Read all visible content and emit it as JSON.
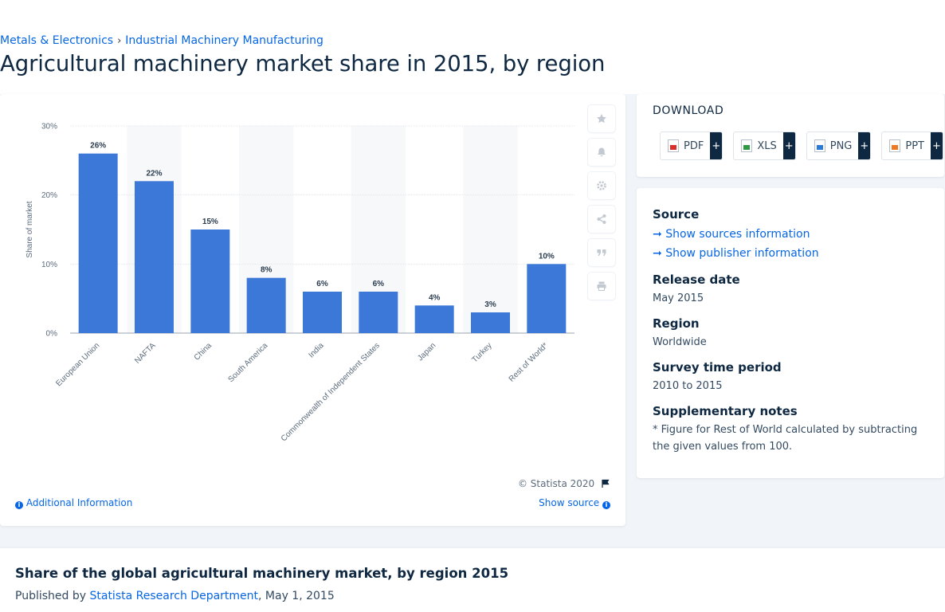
{
  "breadcrumb": {
    "first": "Metals & Electronics",
    "separator": "›",
    "second": "Industrial Machinery Manufacturing"
  },
  "page_title": "Agricultural machinery market share in 2015, by region",
  "chart_data": {
    "type": "bar",
    "categories": [
      "European Union",
      "NAFTA",
      "China",
      "South America",
      "India",
      "Commonwealth of Independent States",
      "Japan",
      "Turkey",
      "Rest of World*"
    ],
    "values": [
      26,
      22,
      15,
      8,
      6,
      6,
      4,
      3,
      10
    ],
    "data_labels": [
      "26%",
      "22%",
      "15%",
      "8%",
      "6%",
      "6%",
      "4%",
      "3%",
      "10%"
    ],
    "ylabel": "Share of market",
    "yticks": [
      "0%",
      "10%",
      "20%",
      "30%"
    ],
    "ylim": [
      0,
      30
    ],
    "bar_color": "#3c78d8",
    "grid": true
  },
  "chart_footer": {
    "copyright": "© Statista 2020",
    "additional_info": "Additional Information",
    "show_source": "Show source"
  },
  "download": {
    "title": "DOWNLOAD",
    "buttons": [
      {
        "label": "PDF",
        "plus": "+",
        "color": "#d9302c"
      },
      {
        "label": "XLS",
        "plus": "+",
        "color": "#2e9a44"
      },
      {
        "label": "PNG",
        "plus": "+",
        "color": "#2b7bd8"
      },
      {
        "label": "PPT",
        "plus": "+",
        "color": "#ee7b22"
      }
    ]
  },
  "meta": {
    "source_heading": "Source",
    "show_sources": "Show sources information",
    "show_publisher": "Show publisher information",
    "release_heading": "Release date",
    "release_value": "May 2015",
    "region_heading": "Region",
    "region_value": "Worldwide",
    "survey_heading": "Survey time period",
    "survey_value": "2010 to 2015",
    "notes_heading": "Supplementary notes",
    "notes_value": "* Figure for Rest of World calculated by subtracting the given values from 100."
  },
  "bottom": {
    "title": "Share of the global agricultural machinery market, by region 2015",
    "published_by": "Published by",
    "publisher": "Statista Research Department",
    "date": ", May 1, 2015"
  },
  "tool_icons": [
    "star-icon",
    "bell-icon",
    "gear-icon",
    "share-icon",
    "quote-icon",
    "print-icon"
  ]
}
